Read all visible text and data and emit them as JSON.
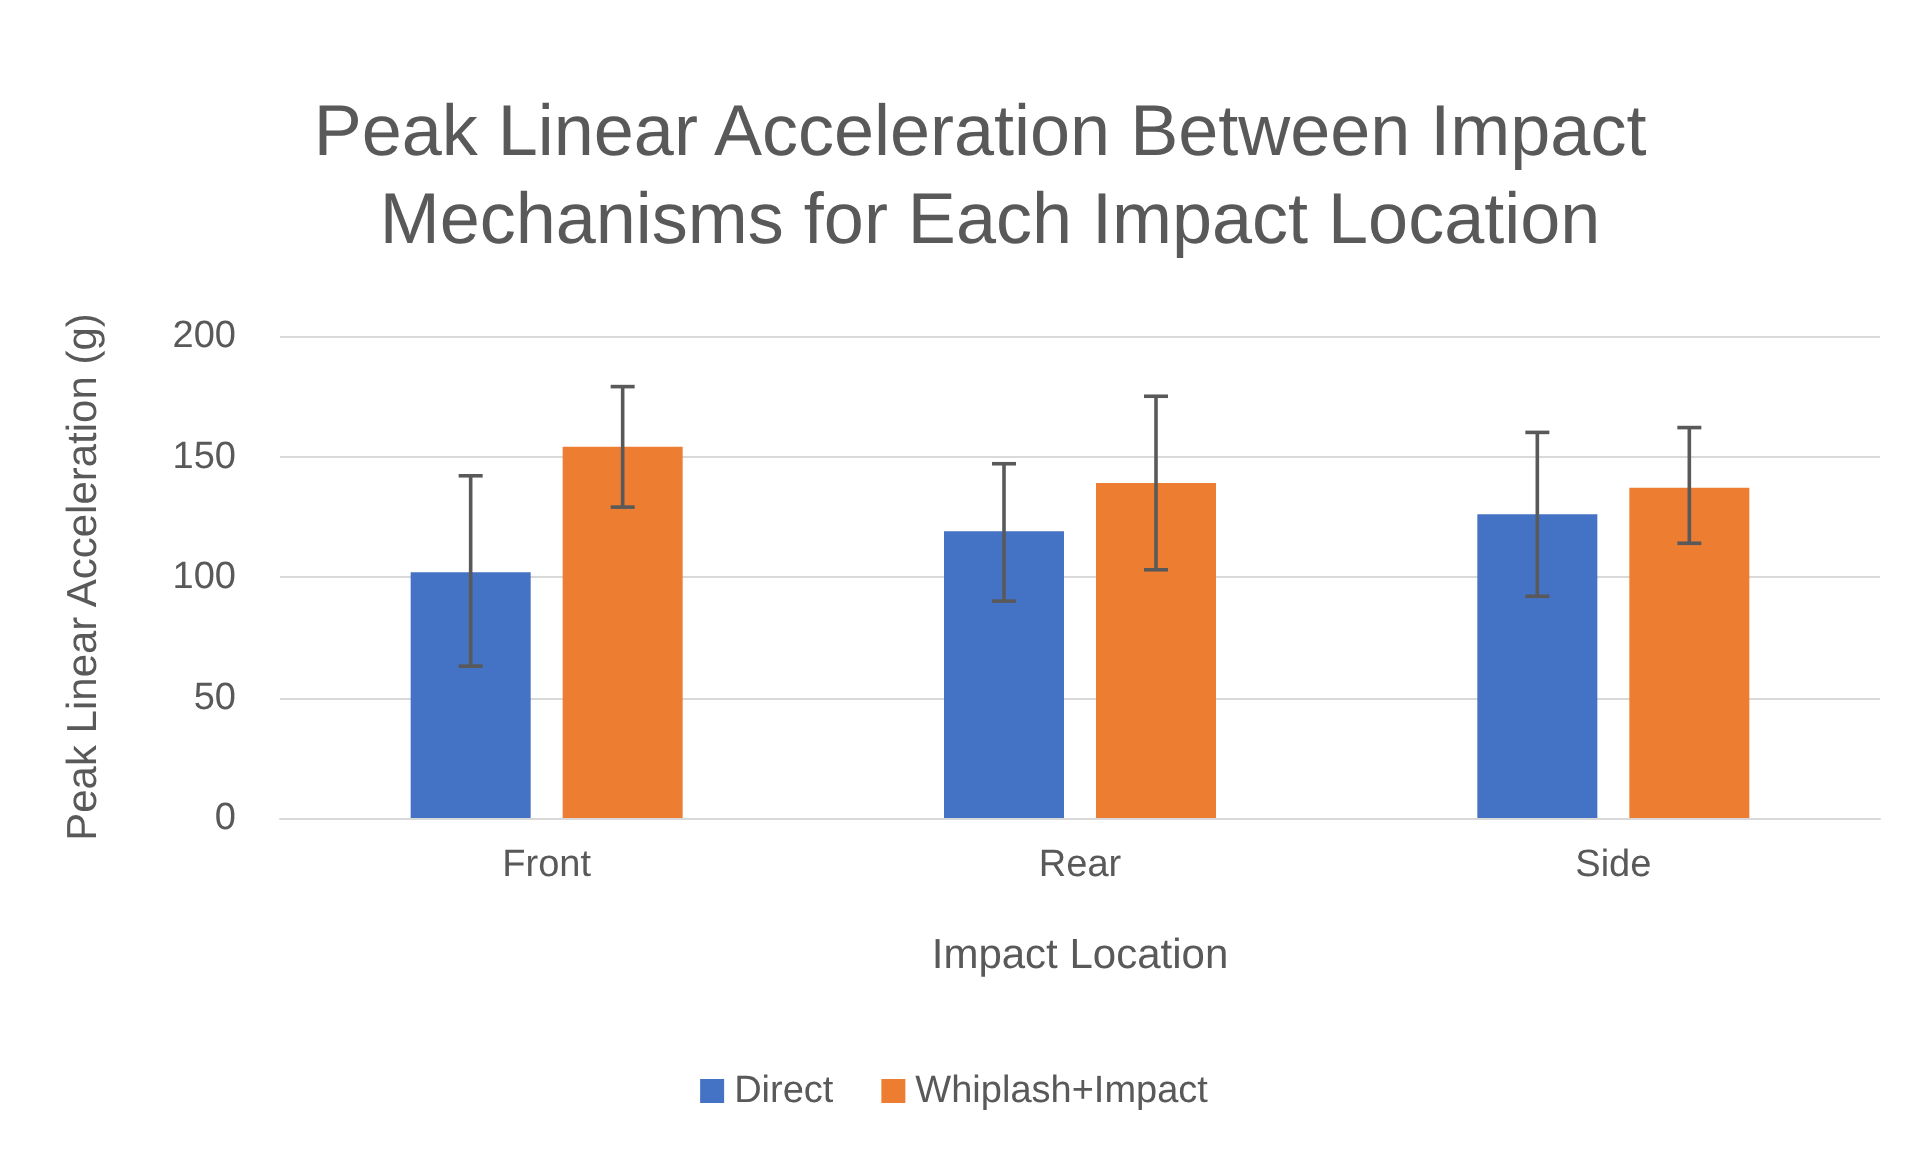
{
  "chart_data": {
    "type": "bar",
    "title": "Peak Linear Acceleration Between Impact Mechanisms for Each Impact Location",
    "xlabel": "Impact Location",
    "ylabel": "Peak Linear Acceleration (g)",
    "categories": [
      "Front",
      "Rear",
      "Side"
    ],
    "series": [
      {
        "name": "Direct",
        "color": "#4472c4",
        "values": [
          102,
          119,
          126
        ],
        "errors": [
          [
            63,
            142
          ],
          [
            90,
            147
          ],
          [
            92,
            160
          ]
        ]
      },
      {
        "name": "Whiplash+Impact",
        "color": "#ed7d31",
        "values": [
          154,
          139,
          137
        ],
        "errors": [
          [
            129,
            179
          ],
          [
            103,
            175
          ],
          [
            114,
            162
          ]
        ]
      }
    ],
    "ylim": [
      0,
      200
    ],
    "yticks": [
      0,
      50,
      100,
      150,
      200
    ],
    "grid": "y",
    "legend": "bottom"
  }
}
